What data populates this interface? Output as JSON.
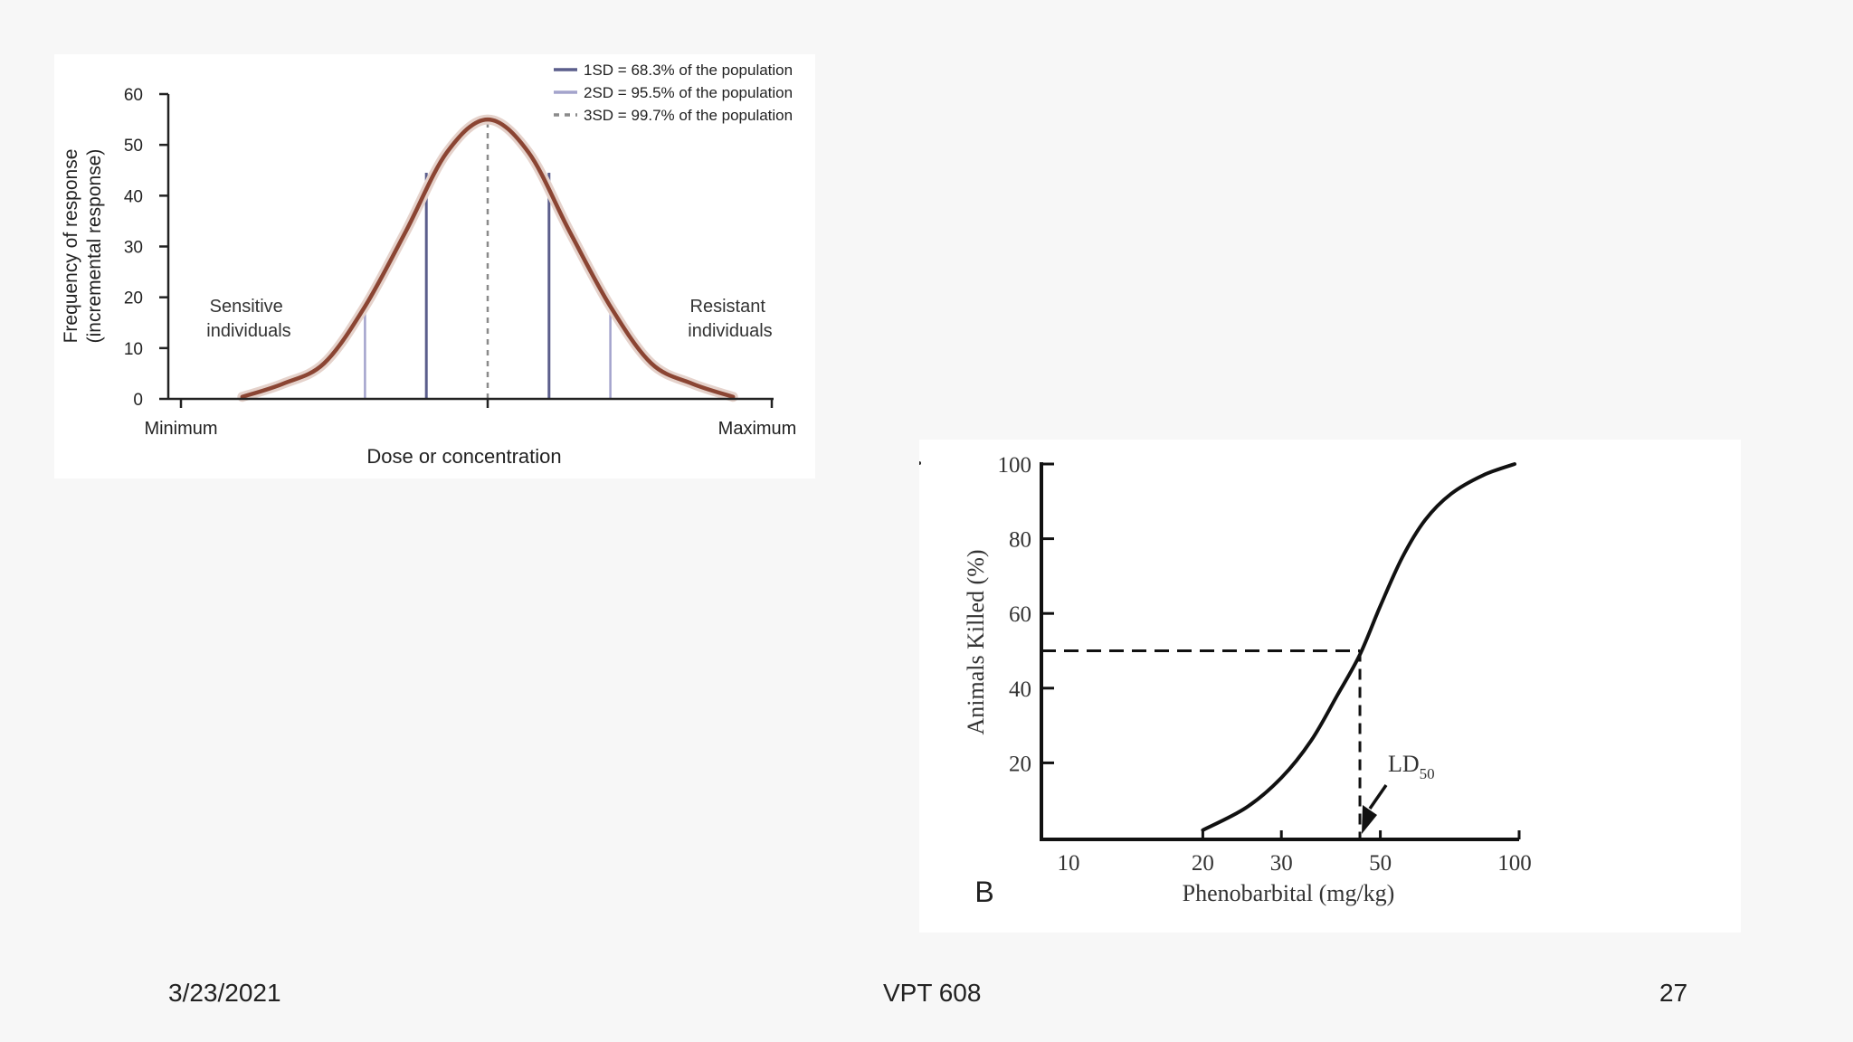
{
  "chart_data": [
    {
      "type": "line",
      "title": "",
      "xlabel": "Dose or concentration",
      "ylabel": "Frequency of response",
      "ylabel_sub": "(incremental response)",
      "ylim": [
        0,
        60
      ],
      "y_ticks": [
        0,
        10,
        20,
        30,
        40,
        50,
        60
      ],
      "x_tick_labels": {
        "min": "Minimum",
        "max": "Maximum"
      },
      "series": [
        {
          "name": "normal distribution",
          "x": [
            -2.4,
            -2.0,
            -1.6,
            -1.2,
            -0.8,
            -0.4,
            0.0,
            0.4,
            0.8,
            1.2,
            1.6,
            2.0,
            2.4
          ],
          "y": [
            0.4,
            3.0,
            7.0,
            18.2,
            33.0,
            48.5,
            55.0,
            48.5,
            33.0,
            18.2,
            7.0,
            3.0,
            0.4
          ]
        }
      ],
      "reference_lines": [
        {
          "x": -1.2,
          "y": 18.2,
          "type": "2SD"
        },
        {
          "x": -0.6,
          "y": 44.5,
          "type": "1SD"
        },
        {
          "x": 0.0,
          "y": 55.0,
          "type": "3SD"
        },
        {
          "x": 0.6,
          "y": 44.5,
          "type": "1SD"
        },
        {
          "x": 1.2,
          "y": 18.2,
          "type": "2SD"
        }
      ],
      "legend": [
        {
          "key": "1SD",
          "label": "1SD = 68.3% of the population",
          "color": "#5b5e8c",
          "dashed": false
        },
        {
          "key": "2SD",
          "label": "2SD = 95.5% of the population",
          "color": "#a3a3cc",
          "dashed": false
        },
        {
          "key": "3SD",
          "label": "3SD = 99.7% of the population",
          "color": "#8a8a8a",
          "dashed": true
        }
      ],
      "legend_position": "top-right",
      "annotations": [
        {
          "lines": [
            "Sensitive",
            "individuals"
          ],
          "position": "left"
        },
        {
          "lines": [
            "Resistant",
            "individuals"
          ],
          "position": "right"
        }
      ],
      "colors": {
        "curve": "#8b4533",
        "curve_glow": "#e5d2cb"
      }
    },
    {
      "type": "line",
      "title": "",
      "panel_label": "B",
      "xlabel": "Phenobarbital (mg/kg)",
      "ylabel": "Animals Killed (%)",
      "ylim": [
        0,
        100
      ],
      "y_ticks": [
        20,
        40,
        60,
        80,
        100
      ],
      "x_scale": "log",
      "x_ticks": [
        10,
        20,
        30,
        50,
        100
      ],
      "series": [
        {
          "name": "dose-response",
          "x": [
            20,
            25,
            30,
            35,
            40,
            45,
            50,
            56,
            63,
            72,
            85,
            100
          ],
          "y": [
            2,
            8,
            16,
            26,
            38,
            49,
            62,
            75,
            85,
            92,
            97,
            100
          ]
        }
      ],
      "ld50": {
        "x": 45,
        "y": 50,
        "label": "LD",
        "label_sub": "50"
      },
      "colors": {
        "curve": "#111111"
      }
    }
  ],
  "footer": {
    "date": "3/23/2021",
    "course": "VPT 608",
    "page": "27"
  }
}
